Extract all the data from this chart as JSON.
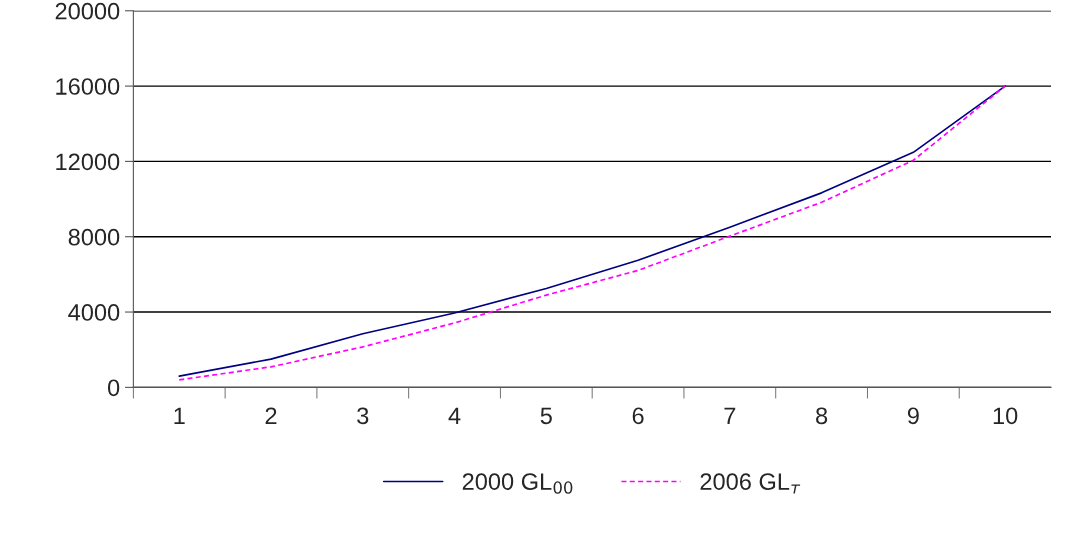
{
  "chart_data": {
    "type": "line",
    "categories": [
      "1",
      "2",
      "3",
      "4",
      "5",
      "6",
      "7",
      "8",
      "9",
      "10"
    ],
    "series": [
      {
        "name": "2000 GL$_{00}$",
        "color": "#000080",
        "line_style": "solid",
        "values": [
          600,
          1500,
          2850,
          3950,
          5250,
          6750,
          8500,
          10330,
          12480,
          16000
        ]
      },
      {
        "name": "2006 GL$_{т}$",
        "color": "#ff00ff",
        "line_style": "dashed",
        "values": [
          400,
          1090,
          2150,
          3420,
          4900,
          6210,
          8030,
          9830,
          12060,
          16000
        ]
      }
    ],
    "ylim": [
      0,
      20000
    ],
    "yticks": [
      0,
      4000,
      8000,
      12000,
      16000,
      20000
    ],
    "grid": "y",
    "legend": "bottom",
    "marker": "none"
  }
}
